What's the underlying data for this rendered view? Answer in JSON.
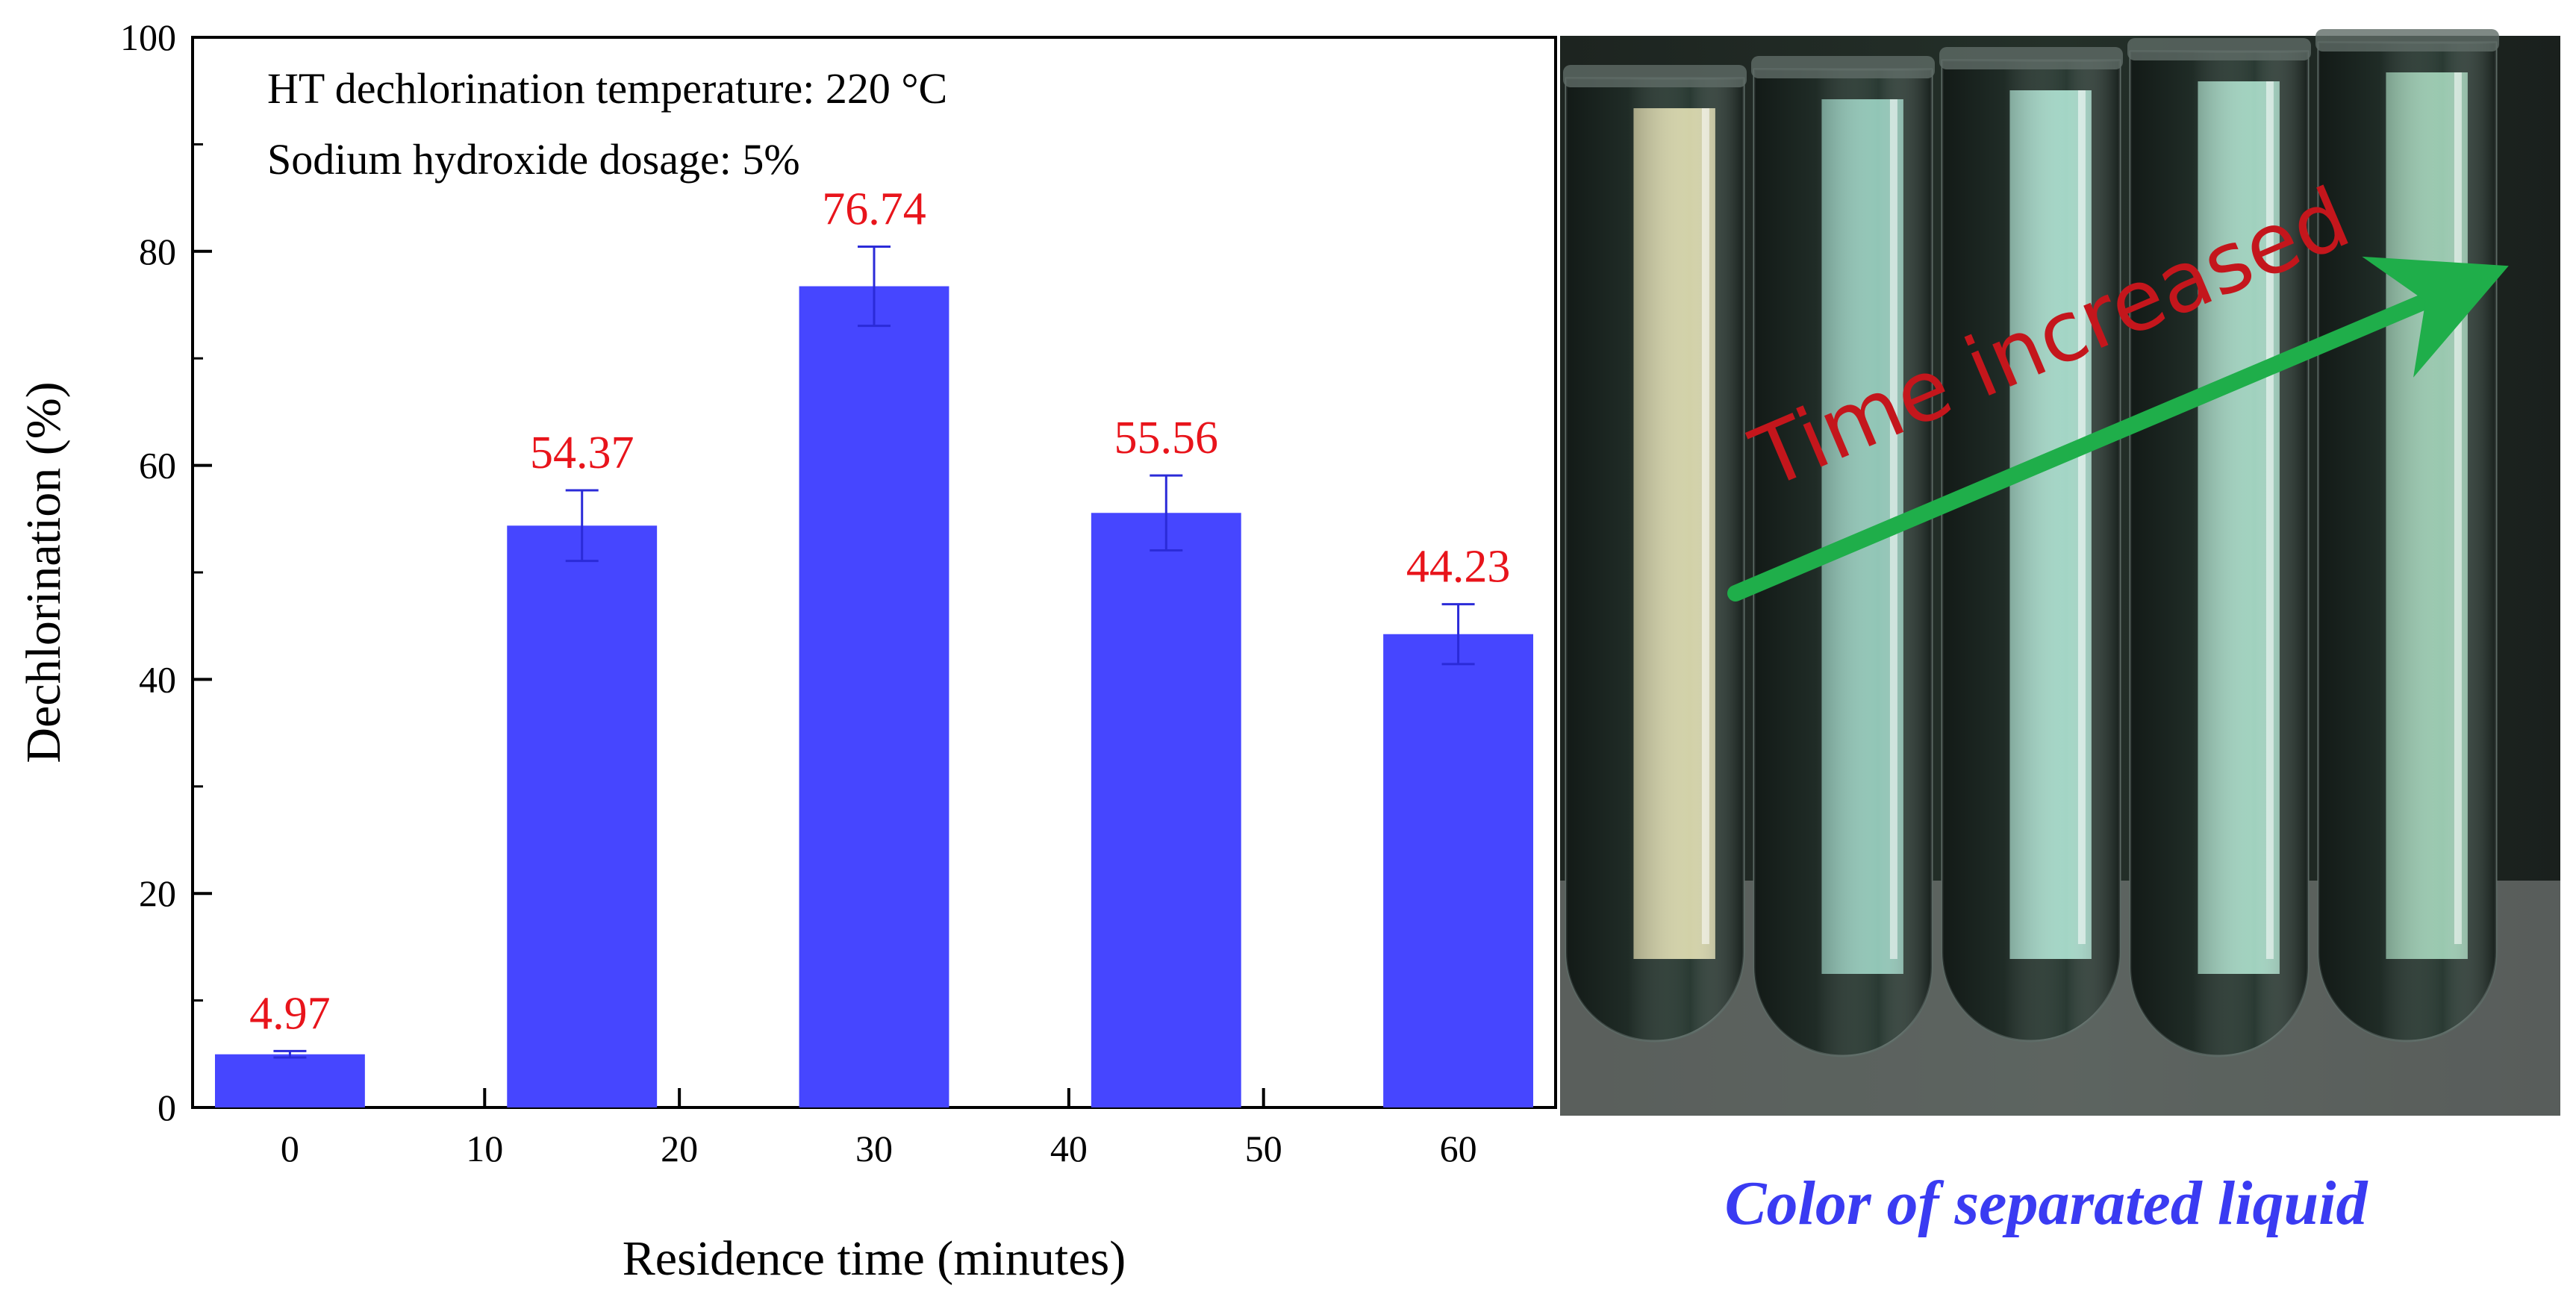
{
  "chart_data": {
    "type": "bar",
    "x": [
      0,
      15,
      30,
      45,
      60
    ],
    "values": [
      4.97,
      54.37,
      76.74,
      55.56,
      44.23
    ],
    "errors": [
      0.3,
      3.3,
      3.7,
      3.5,
      2.8
    ],
    "data_labels": [
      "4.97",
      "54.37",
      "76.74",
      "55.56",
      "44.23"
    ],
    "xlabel": "Residence time (minutes)",
    "ylabel": "Dechlorination (%)",
    "xlim": [
      -5,
      65
    ],
    "ylim": [
      0,
      100
    ],
    "x_ticks": [
      0,
      10,
      20,
      30,
      40,
      50,
      60
    ],
    "y_ticks": [
      0,
      20,
      40,
      60,
      80,
      100
    ],
    "annotations": [
      "HT dechlorination temperature: 220 °C",
      "Sodium hydroxide dosage: 5%"
    ],
    "grid": false,
    "bar_color": "#4646ff",
    "error_bar_color": "#4646ff",
    "label_color": "#e8141b"
  },
  "photo": {
    "annotation": "Time increased",
    "caption": "Color of separated liquid",
    "arrow_color": "#1fae4a",
    "annotation_color": "#c4161c",
    "caption_color": "#3a3bf2",
    "tube_count": 5,
    "tube_colors": [
      "#e9e6b8",
      "#9fd8c8",
      "#b4ead9",
      "#b0e6d2",
      "#a9dcc0"
    ]
  }
}
